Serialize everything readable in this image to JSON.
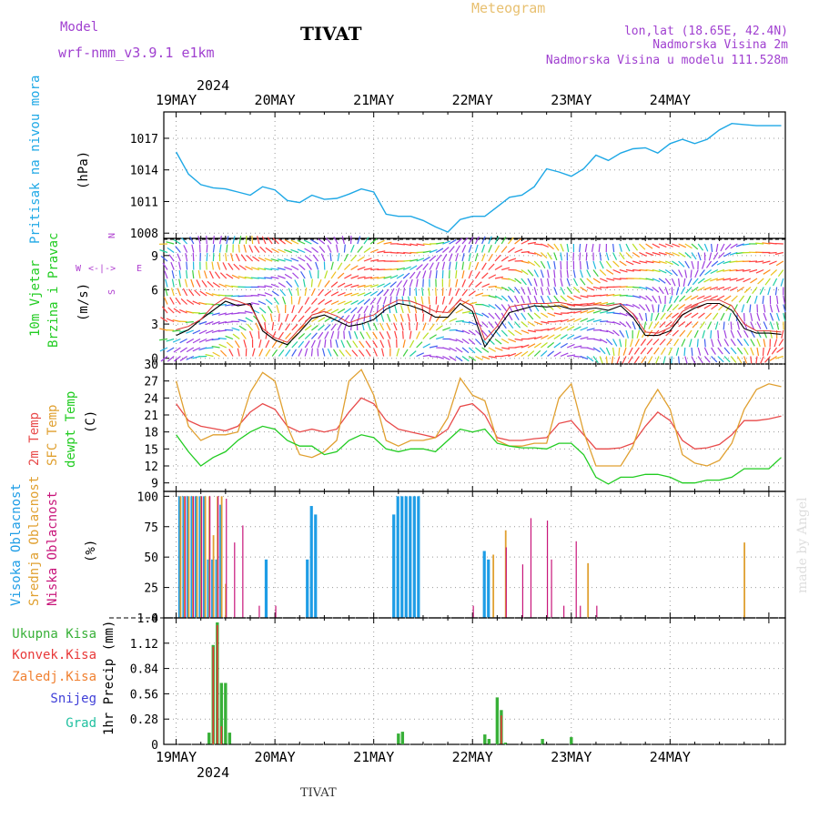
{
  "header": {
    "model_label": "Model",
    "model_name": "wrf-nmm_v3.9.1 e1km",
    "station": "TIVAT",
    "meteogram": "Meteogram",
    "lonlat": "lon,lat (18.65E, 42.4N)",
    "elevation": "Nadmorska Visina 2m",
    "model_elevation": "Nadmorska Visina u modelu 111.528m",
    "year": "2024",
    "bottom_station": "TIVAT",
    "watermark": "made by Angel"
  },
  "colors": {
    "pressure": "#1ea8e6",
    "wind_speed": "#000000",
    "gust": "#dd3333",
    "t2m": "#e84a4a",
    "sfc": "#e0a030",
    "dewpt": "#22cc22",
    "high_cloud": "#1e9de6",
    "mid_cloud": "#e0a030",
    "low_cloud": "#c8157a",
    "total_precip": "#38b038",
    "conv_precip": "#e83838",
    "frz_precip": "#f08030",
    "snow": "#4040d8",
    "graupel": "#20c0a0",
    "header_purple": "#a040d0",
    "meteogram_title": "#e8c070"
  },
  "chart_data": [
    {
      "type": "line",
      "title": "Pritisak na nivou mora",
      "ylabel": "(hPa)",
      "ylim": [
        1007.5,
        1019.5
      ],
      "yticks": [
        1008,
        1011,
        1014,
        1017
      ],
      "grid": true,
      "x_day_labels": [
        "19MAY",
        "20MAY",
        "21MAY",
        "22MAY",
        "23MAY",
        "24MAY"
      ],
      "series": [
        {
          "x": [
            0,
            3,
            6,
            9,
            12,
            15,
            18,
            21,
            24,
            27,
            30,
            33,
            36,
            39,
            42,
            45,
            48,
            51,
            54,
            57,
            60,
            63,
            66,
            69,
            72,
            75,
            78,
            81,
            84,
            87,
            90,
            93,
            96,
            99,
            102,
            105,
            108,
            111,
            114,
            117,
            120,
            123,
            126,
            129,
            132,
            135,
            138,
            141,
            144,
            147
          ],
          "values": [
            1015.7,
            1013.6,
            1012.6,
            1012.3,
            1012.2,
            1011.9,
            1011.6,
            1012.4,
            1012.1,
            1011.1,
            1010.9,
            1011.6,
            1011.2,
            1011.3,
            1011.7,
            1012.2,
            1011.9,
            1009.8,
            1009.6,
            1009.6,
            1009.2,
            1008.6,
            1008.1,
            1009.3,
            1009.6,
            1009.6,
            1010.5,
            1011.4,
            1011.6,
            1012.4,
            1014.1,
            1013.8,
            1013.4,
            1014.1,
            1015.4,
            1014.9,
            1015.6,
            1016.0,
            1016.1,
            1015.6,
            1016.5,
            1016.9,
            1016.5,
            1016.9,
            1017.8,
            1018.4,
            1018.3,
            1018.2,
            1018.2,
            1018.2
          ]
        }
      ]
    },
    {
      "type": "line",
      "title": "10m Vjetar Brzina i Pravac",
      "ylabel": "(m/s)",
      "ylim": [
        -0.5,
        10.5
      ],
      "yticks": [
        0,
        3,
        6,
        9
      ],
      "direction_legend": [
        "N",
        "E",
        "S",
        "W"
      ],
      "grid": true,
      "series": [
        {
          "name": "speed",
          "x": [
            0,
            3,
            6,
            9,
            12,
            15,
            18,
            21,
            24,
            27,
            30,
            33,
            36,
            39,
            42,
            45,
            48,
            51,
            54,
            57,
            60,
            63,
            66,
            69,
            72,
            75,
            78,
            81,
            84,
            87,
            90,
            93,
            96,
            99,
            102,
            105,
            108,
            111,
            114,
            117,
            120,
            123,
            126,
            129,
            132,
            135,
            138,
            141,
            144,
            147
          ],
          "values": [
            2.0,
            2.5,
            3.4,
            4.2,
            5.0,
            4.6,
            4.8,
            2.4,
            1.6,
            1.2,
            2.3,
            3.5,
            3.8,
            3.3,
            2.8,
            3.0,
            3.4,
            4.3,
            4.8,
            4.6,
            4.2,
            3.6,
            3.6,
            4.8,
            4.1,
            1.0,
            2.5,
            4.0,
            4.3,
            4.6,
            4.5,
            4.6,
            4.3,
            4.3,
            4.4,
            4.2,
            4.6,
            3.6,
            2.0,
            2.0,
            2.4,
            3.8,
            4.4,
            4.8,
            4.8,
            4.2,
            2.6,
            2.2,
            2.2,
            2.1
          ]
        },
        {
          "name": "gust",
          "x": [
            0,
            3,
            6,
            9,
            12,
            15,
            18,
            21,
            24,
            27,
            30,
            33,
            36,
            39,
            42,
            45,
            48,
            51,
            54,
            57,
            60,
            63,
            66,
            69,
            72,
            75,
            78,
            81,
            84,
            87,
            90,
            93,
            96,
            99,
            102,
            105,
            108,
            111,
            114,
            117,
            120,
            123,
            126,
            129,
            132,
            135,
            138,
            141,
            144,
            147
          ],
          "values": [
            2.5,
            2.8,
            3.4,
            4.6,
            5.3,
            5.0,
            4.6,
            2.6,
            1.8,
            1.4,
            2.6,
            3.8,
            4.1,
            3.7,
            3.1,
            3.5,
            3.8,
            4.6,
            5.1,
            5.0,
            4.6,
            4.1,
            4.0,
            5.1,
            4.6,
            1.6,
            2.8,
            4.5,
            4.7,
            4.8,
            4.8,
            4.9,
            4.7,
            4.6,
            4.7,
            4.6,
            4.8,
            3.9,
            2.3,
            2.2,
            2.7,
            4.1,
            4.7,
            5.1,
            5.1,
            4.6,
            3.0,
            2.4,
            2.4,
            2.3
          ]
        }
      ]
    },
    {
      "type": "line",
      "ylabel": "(C)",
      "ylim": [
        7.5,
        30
      ],
      "yticks": [
        9,
        12,
        15,
        18,
        21,
        24,
        27,
        30
      ],
      "grid": true,
      "legend": [
        "2m Temp",
        "SFC Temp",
        "dewpt Temp"
      ],
      "series": [
        {
          "name": "2m Temp",
          "x": [
            0,
            3,
            6,
            9,
            12,
            15,
            18,
            21,
            24,
            27,
            30,
            33,
            36,
            39,
            42,
            45,
            48,
            51,
            54,
            57,
            60,
            63,
            66,
            69,
            72,
            75,
            78,
            81,
            84,
            87,
            90,
            93,
            96,
            99,
            102,
            105,
            108,
            111,
            114,
            117,
            120,
            123,
            126,
            129,
            132,
            135,
            138,
            141,
            144,
            147
          ],
          "values": [
            23.0,
            20.0,
            19.0,
            18.6,
            18.2,
            19.0,
            21.5,
            23.0,
            22.0,
            19.0,
            18.0,
            18.5,
            18.0,
            18.5,
            21.5,
            24.0,
            23.0,
            20.0,
            18.5,
            18.0,
            17.5,
            17.0,
            18.5,
            22.5,
            23.0,
            21.0,
            17.0,
            16.5,
            16.5,
            16.8,
            17.0,
            19.5,
            20.0,
            17.5,
            15.0,
            15.0,
            15.2,
            16.0,
            19.0,
            21.5,
            20.0,
            16.5,
            15.0,
            15.2,
            15.8,
            17.5,
            20.0,
            20.0,
            20.3,
            20.8
          ]
        },
        {
          "name": "SFC Temp",
          "x": [
            0,
            3,
            6,
            9,
            12,
            15,
            18,
            21,
            24,
            27,
            30,
            33,
            36,
            39,
            42,
            45,
            48,
            51,
            54,
            57,
            60,
            63,
            66,
            69,
            72,
            75,
            78,
            81,
            84,
            87,
            90,
            93,
            96,
            99,
            102,
            105,
            108,
            111,
            114,
            117,
            120,
            123,
            126,
            129,
            132,
            135,
            138,
            141,
            144,
            147
          ],
          "values": [
            27.0,
            19.0,
            16.5,
            17.5,
            17.5,
            18.0,
            25.0,
            28.5,
            27.0,
            19.0,
            14.0,
            13.5,
            14.5,
            16.5,
            27.0,
            29.0,
            24.5,
            16.5,
            15.5,
            16.5,
            16.5,
            17.0,
            20.5,
            27.5,
            24.5,
            23.5,
            16.5,
            15.5,
            15.5,
            16.0,
            16.0,
            24.0,
            26.5,
            18.0,
            12.0,
            12.0,
            12.0,
            15.5,
            22.0,
            25.5,
            22.0,
            14.0,
            12.5,
            12.0,
            13.0,
            16.0,
            22.0,
            25.5,
            26.5,
            26.0
          ]
        },
        {
          "name": "dewpt Temp",
          "x": [
            0,
            3,
            6,
            9,
            12,
            15,
            18,
            21,
            24,
            27,
            30,
            33,
            36,
            39,
            42,
            45,
            48,
            51,
            54,
            57,
            60,
            63,
            66,
            69,
            72,
            75,
            78,
            81,
            84,
            87,
            90,
            93,
            96,
            99,
            102,
            105,
            108,
            111,
            114,
            117,
            120,
            123,
            126,
            129,
            132,
            135,
            138,
            141,
            144,
            147
          ],
          "values": [
            17.5,
            14.5,
            12.0,
            13.5,
            14.5,
            16.5,
            18.0,
            19.0,
            18.5,
            16.5,
            15.5,
            15.5,
            14.0,
            14.5,
            16.5,
            17.5,
            17.0,
            15.0,
            14.5,
            15.0,
            15.0,
            14.5,
            16.5,
            18.5,
            18.0,
            18.5,
            16.0,
            15.5,
            15.2,
            15.2,
            15.0,
            16.0,
            16.0,
            14.0,
            10.0,
            8.8,
            10.0,
            10.0,
            10.5,
            10.5,
            10.0,
            9.0,
            9.0,
            9.5,
            9.5,
            10.0,
            11.5,
            11.5,
            11.5,
            13.5
          ]
        }
      ]
    },
    {
      "type": "bar",
      "ylabel": "(%)",
      "ylim": [
        0,
        104
      ],
      "yticks": [
        0,
        25,
        50,
        75,
        100
      ],
      "grid": true,
      "legend": [
        "Visoka Oblacnost",
        "Srednja Oblacnost",
        "Niska Oblacnost"
      ],
      "series": [
        {
          "name": "Visoka Oblacnost",
          "x": [
            1,
            2,
            3,
            4,
            5,
            6,
            7,
            8,
            9,
            10,
            11,
            22,
            32,
            33,
            34,
            53,
            54,
            55,
            56,
            57,
            58,
            59,
            75,
            76
          ],
          "values": [
            100,
            100,
            100,
            100,
            100,
            100,
            100,
            48,
            48,
            48,
            93,
            48,
            48,
            92,
            85,
            85,
            100,
            100,
            100,
            100,
            100,
            100,
            55,
            48
          ]
        },
        {
          "name": "Srednja Oblacnost",
          "x": [
            1,
            2,
            3,
            4,
            5,
            6,
            7,
            8,
            9,
            10,
            11,
            12,
            77,
            80,
            100,
            138
          ],
          "values": [
            100,
            100,
            100,
            100,
            100,
            100,
            100,
            100,
            68,
            100,
            100,
            28,
            52,
            72,
            45,
            62
          ]
        },
        {
          "name": "Niska Oblacnost",
          "x": [
            2,
            4,
            6,
            8,
            10,
            12,
            14,
            16,
            20,
            24,
            72,
            80,
            84,
            86,
            90,
            91,
            94,
            97,
            98,
            102
          ],
          "values": [
            100,
            100,
            100,
            100,
            100,
            98,
            62,
            76,
            10,
            10,
            10,
            58,
            44,
            82,
            80,
            48,
            10,
            63,
            10,
            10
          ]
        }
      ]
    },
    {
      "type": "bar",
      "ylabel": "1hr Precip (mm)",
      "ylim": [
        0,
        1.4
      ],
      "yticks": [
        0,
        0.28,
        0.56,
        0.84,
        1.12,
        1.4
      ],
      "grid": true,
      "legend": [
        "Ukupna Kisa",
        "Konvek.Kisa",
        "Zaledj.Kisa",
        "Snijeg",
        "Grad"
      ],
      "x_day_labels": [
        "19MAY",
        "20MAY",
        "21MAY",
        "22MAY",
        "23MAY",
        "24MAY"
      ],
      "series": [
        {
          "name": "Ukupna Kisa",
          "x": [
            8,
            9,
            10,
            11,
            12,
            13,
            54,
            55,
            75,
            76,
            78,
            79,
            80,
            89,
            96
          ],
          "values": [
            0.13,
            1.1,
            1.35,
            0.68,
            0.68,
            0.13,
            0.12,
            0.14,
            0.11,
            0.06,
            0.52,
            0.38,
            0.02,
            0.06,
            0.08
          ]
        },
        {
          "name": "Konvek.Kisa",
          "x": [
            9,
            10,
            11,
            79
          ],
          "values": [
            1.08,
            1.32,
            0.2,
            0.32
          ]
        }
      ]
    }
  ]
}
